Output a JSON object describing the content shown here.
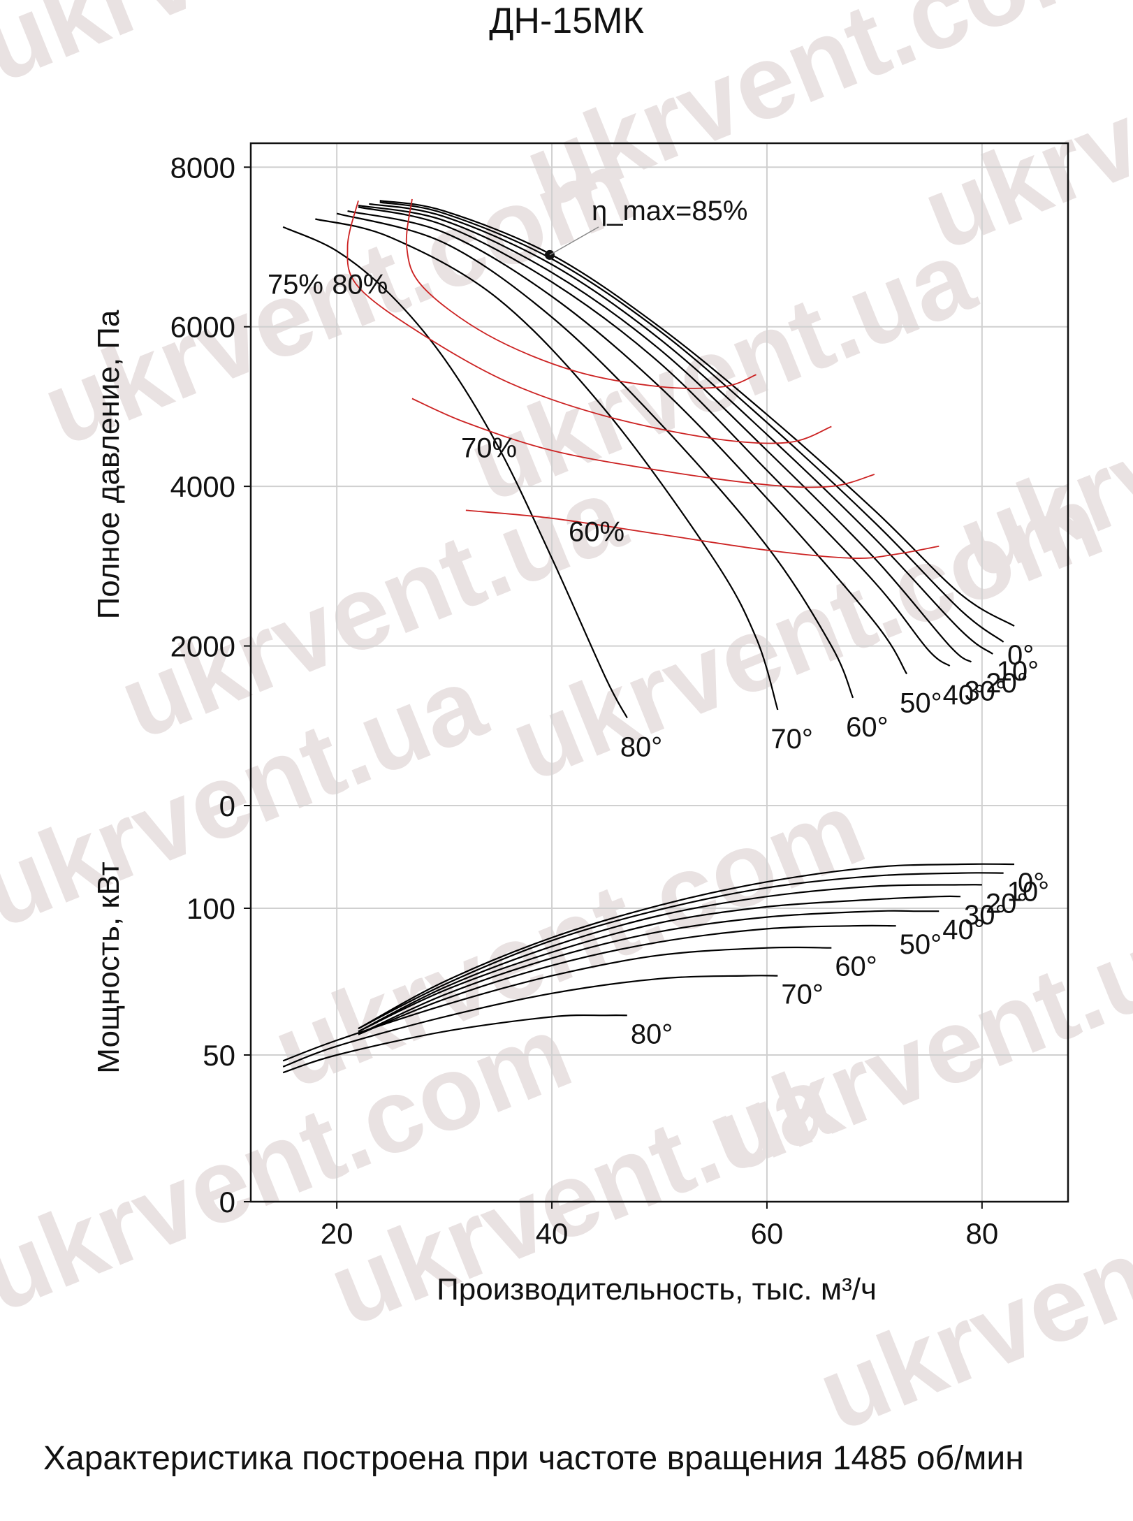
{
  "title": "ДН-15МК",
  "caption": "Характеристика построена при частоте вращения 1485 об/мин",
  "watermarks": [
    "ukrvent.ua",
    "ukrvent.com"
  ],
  "colors": {
    "curves": "#000000",
    "efficiency": "#cc2222",
    "grid": "#d0d0d0",
    "watermark": "#e9e2e2"
  },
  "chart_data": [
    {
      "type": "line",
      "panel": "pressure",
      "xlabel": "Производительность, тыс. м³/ч",
      "ylabel": "Полное давление, Па",
      "xlim": [
        12,
        88
      ],
      "ylim": [
        0,
        8300
      ],
      "xticks": [
        20,
        40,
        60,
        80
      ],
      "yticks": [
        0,
        2000,
        4000,
        6000,
        8000
      ],
      "grid": true,
      "peak_label": "η_max=85%",
      "peak_point": {
        "x": 39.8,
        "y": 6900
      },
      "series": [
        {
          "name": "0°",
          "x": [
            24,
            30,
            40,
            50,
            60,
            70,
            78,
            83
          ],
          "y": [
            7580,
            7450,
            6900,
            6000,
            4900,
            3700,
            2650,
            2250
          ]
        },
        {
          "name": "10°",
          "x": [
            24,
            30,
            40,
            50,
            60,
            70,
            78,
            82
          ],
          "y": [
            7560,
            7420,
            6850,
            5950,
            4800,
            3550,
            2450,
            2050
          ]
        },
        {
          "name": "20°",
          "x": [
            23,
            30,
            40,
            50,
            60,
            70,
            78,
            81
          ],
          "y": [
            7540,
            7380,
            6780,
            5850,
            4650,
            3350,
            2200,
            1900
          ]
        },
        {
          "name": "30°",
          "x": [
            22,
            30,
            40,
            50,
            60,
            70,
            77,
            79
          ],
          "y": [
            7520,
            7330,
            6680,
            5720,
            4450,
            3100,
            2000,
            1800
          ]
        },
        {
          "name": "40°",
          "x": [
            22,
            30,
            40,
            50,
            60,
            70,
            75,
            77
          ],
          "y": [
            7500,
            7270,
            6560,
            5550,
            4200,
            2800,
            1950,
            1750
          ]
        },
        {
          "name": "50°",
          "x": [
            21,
            30,
            40,
            50,
            60,
            70,
            73
          ],
          "y": [
            7450,
            7180,
            6380,
            5250,
            3850,
            2300,
            1650
          ]
        },
        {
          "name": "60°",
          "x": [
            20,
            30,
            40,
            50,
            60,
            66,
            68
          ],
          "y": [
            7420,
            7050,
            6120,
            4800,
            3250,
            2000,
            1350
          ]
        },
        {
          "name": "70°",
          "x": [
            18,
            25,
            35,
            45,
            55,
            59,
            61
          ],
          "y": [
            7350,
            7120,
            6350,
            4950,
            3100,
            2100,
            1200
          ]
        },
        {
          "name": "80°",
          "x": [
            15,
            20,
            25,
            30,
            35,
            40,
            45,
            47
          ],
          "y": [
            7250,
            6950,
            6400,
            5600,
            4500,
            3100,
            1600,
            1100
          ]
        }
      ],
      "efficiency_series": [
        {
          "name": "80%",
          "x": [
            27,
            26.5,
            28,
            34,
            42,
            50,
            56,
            59
          ],
          "y": [
            7600,
            7000,
            6500,
            5900,
            5450,
            5250,
            5250,
            5400
          ]
        },
        {
          "name": "75%",
          "x": [
            22,
            21,
            22,
            28,
            36,
            45,
            55,
            62,
            66
          ],
          "y": [
            7580,
            7000,
            6500,
            5900,
            5300,
            4880,
            4600,
            4550,
            4750
          ]
        },
        {
          "name": "70%",
          "x": [
            27,
            32,
            40,
            50,
            60,
            66,
            70
          ],
          "y": [
            5100,
            4800,
            4450,
            4200,
            4020,
            4000,
            4150
          ]
        },
        {
          "name": "60%",
          "x": [
            32,
            40,
            50,
            60,
            68,
            72,
            76
          ],
          "y": [
            3700,
            3600,
            3400,
            3200,
            3100,
            3150,
            3250
          ]
        }
      ]
    },
    {
      "type": "line",
      "panel": "power",
      "xlabel": "Производительность, тыс. м³/ч",
      "ylabel": "Мощность, кВт",
      "xlim": [
        12,
        88
      ],
      "ylim": [
        0,
        135
      ],
      "xticks": [
        20,
        40,
        60,
        80
      ],
      "yticks": [
        0,
        50,
        100
      ],
      "grid": true,
      "series": [
        {
          "name": "0°",
          "x": [
            22,
            30,
            40,
            50,
            60,
            70,
            78,
            83
          ],
          "y": [
            59,
            75,
            90,
            101,
            109,
            114,
            115,
            115
          ]
        },
        {
          "name": "10°",
          "x": [
            22,
            30,
            40,
            50,
            60,
            70,
            78,
            82
          ],
          "y": [
            59,
            74,
            89,
            99.5,
            107,
            111,
            112,
            112
          ]
        },
        {
          "name": "20°",
          "x": [
            22,
            30,
            40,
            50,
            60,
            70,
            78,
            80
          ],
          "y": [
            58,
            73,
            87,
            97.5,
            104,
            107.5,
            108,
            108
          ]
        },
        {
          "name": "30°",
          "x": [
            22,
            30,
            40,
            50,
            60,
            70,
            76,
            78
          ],
          "y": [
            58,
            72,
            85,
            95,
            100.5,
            103,
            104,
            104
          ]
        },
        {
          "name": "40°",
          "x": [
            22,
            30,
            40,
            50,
            60,
            70,
            74,
            76
          ],
          "y": [
            57,
            70.5,
            83,
            92,
            97,
            99,
            99,
            99
          ]
        },
        {
          "name": "50°",
          "x": [
            22,
            30,
            40,
            50,
            60,
            68,
            72
          ],
          "y": [
            57,
            69,
            80.5,
            88.5,
            93,
            94,
            94
          ]
        },
        {
          "name": "60°",
          "x": [
            15,
            20,
            30,
            40,
            50,
            60,
            66
          ],
          "y": [
            48,
            55,
            67,
            77,
            84,
            86.5,
            86.5
          ]
        },
        {
          "name": "70°",
          "x": [
            15,
            20,
            30,
            40,
            50,
            58,
            61
          ],
          "y": [
            46,
            53,
            63,
            71,
            76,
            77,
            77
          ]
        },
        {
          "name": "80°",
          "x": [
            15,
            20,
            30,
            40,
            45,
            47
          ],
          "y": [
            44,
            50,
            58,
            63,
            63.5,
            63.5
          ]
        }
      ]
    }
  ]
}
